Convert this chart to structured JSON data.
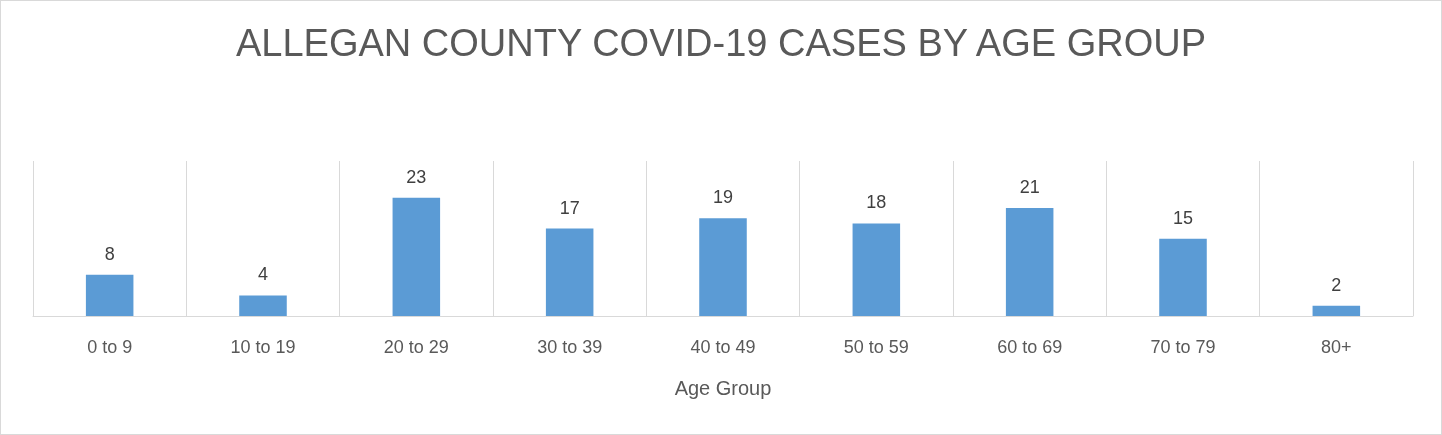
{
  "chart_data": {
    "type": "bar",
    "title": "ALLEGAN COUNTY COVID-19 CASES BY AGE GROUP",
    "xlabel": "Age Group",
    "categories": [
      "0 to 9",
      "10 to 19",
      "20 to 29",
      "30 to 39",
      "40 to 49",
      "50 to 59",
      "60 to 69",
      "70 to 79",
      "80+"
    ],
    "values": [
      8,
      4,
      23,
      17,
      19,
      18,
      21,
      15,
      2
    ],
    "color": "#5b9bd5",
    "data_labels": true,
    "grid": "x"
  }
}
